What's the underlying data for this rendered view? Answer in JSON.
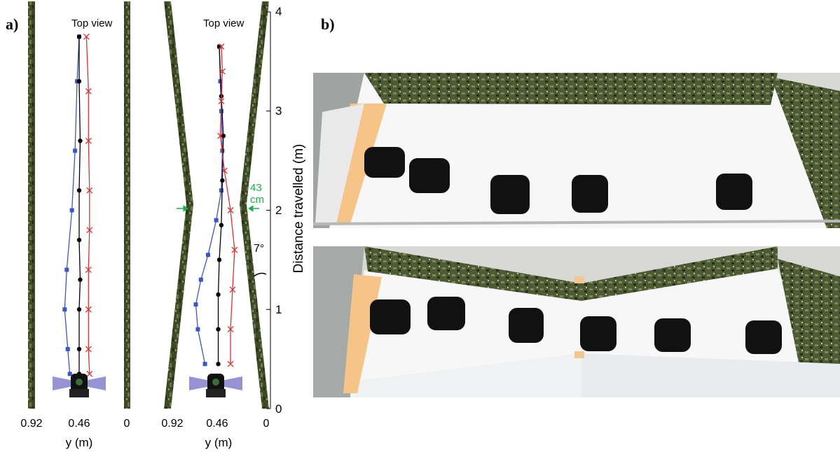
{
  "panel_a_label": "a)",
  "panel_b_label": "b)",
  "chart_data": [
    {
      "type": "line",
      "panel": "a-left",
      "title": "Top view",
      "xlabel": "y (m)",
      "xticks": [
        "0.92",
        "0.46",
        "0"
      ],
      "xlim": [
        0.92,
        0
      ],
      "ylim": [
        0,
        4
      ],
      "series": [
        {
          "color": "#3a56c8",
          "marker": "square",
          "points": [
            [
              0.55,
              0.35
            ],
            [
              0.57,
              0.6
            ],
            [
              0.6,
              1.0
            ],
            [
              0.58,
              1.4
            ],
            [
              0.53,
              2.0
            ],
            [
              0.5,
              2.6
            ],
            [
              0.48,
              3.3
            ],
            [
              0.46,
              3.75
            ]
          ]
        },
        {
          "color": "#000000",
          "marker": "circle",
          "points": [
            [
              0.46,
              0.35
            ],
            [
              0.46,
              0.6
            ],
            [
              0.46,
              1.0
            ],
            [
              0.45,
              1.3
            ],
            [
              0.46,
              1.7
            ],
            [
              0.46,
              2.2
            ],
            [
              0.45,
              2.7
            ],
            [
              0.46,
              3.3
            ],
            [
              0.46,
              3.75
            ]
          ]
        },
        {
          "color": "#e03030",
          "marker": "x",
          "points": [
            [
              0.36,
              0.35
            ],
            [
              0.37,
              0.6
            ],
            [
              0.37,
              1.0
            ],
            [
              0.37,
              1.4
            ],
            [
              0.36,
              1.8
            ],
            [
              0.36,
              2.2
            ],
            [
              0.37,
              2.7
            ],
            [
              0.37,
              3.2
            ],
            [
              0.39,
              3.75
            ]
          ]
        }
      ]
    },
    {
      "type": "line",
      "panel": "a-right",
      "title": "Top view",
      "xlabel": "y (m)",
      "xticks": [
        "0.92",
        "0.46",
        "0"
      ],
      "ylabel": "Distance travelled (m)",
      "yticks": [
        "0",
        "1",
        "2",
        "3",
        "4"
      ],
      "xlim": [
        0.92,
        0
      ],
      "ylim": [
        0,
        4
      ],
      "annotations": {
        "gap": "43 cm",
        "angle": "7°"
      },
      "series": [
        {
          "color": "#3a56c8",
          "marker": "square",
          "points": [
            [
              0.6,
              0.45
            ],
            [
              0.67,
              0.8
            ],
            [
              0.69,
              1.05
            ],
            [
              0.64,
              1.3
            ],
            [
              0.57,
              1.55
            ],
            [
              0.49,
              1.9
            ],
            [
              0.44,
              2.2
            ],
            [
              0.43,
              2.6
            ],
            [
              0.44,
              3.0
            ],
            [
              0.45,
              3.3
            ],
            [
              0.46,
              3.65
            ]
          ]
        },
        {
          "color": "#000000",
          "marker": "circle",
          "points": [
            [
              0.47,
              0.45
            ],
            [
              0.47,
              0.8
            ],
            [
              0.47,
              1.15
            ],
            [
              0.46,
              1.5
            ],
            [
              0.44,
              1.85
            ],
            [
              0.43,
              2.3
            ],
            [
              0.42,
              2.75
            ],
            [
              0.44,
              3.15
            ],
            [
              0.46,
              3.65
            ]
          ]
        },
        {
          "color": "#e03030",
          "marker": "x",
          "points": [
            [
              0.35,
              0.45
            ],
            [
              0.35,
              0.8
            ],
            [
              0.33,
              1.2
            ],
            [
              0.31,
              1.6
            ],
            [
              0.35,
              2.0
            ],
            [
              0.41,
              2.4
            ],
            [
              0.45,
              2.75
            ],
            [
              0.44,
              3.1
            ],
            [
              0.43,
              3.4
            ],
            [
              0.44,
              3.65
            ]
          ]
        }
      ]
    }
  ]
}
